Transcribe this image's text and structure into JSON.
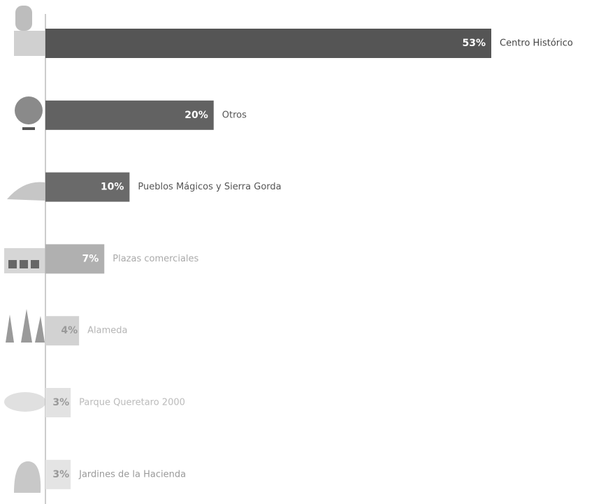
{
  "chart_data": {
    "type": "bar",
    "orientation": "horizontal",
    "categories": [
      "Centro Histórico",
      "Otros",
      "Pueblos Mágicos y Sierra Gorda",
      "Plazas comerciales",
      "Alameda",
      "Parque Queretaro 2000",
      "Jardines de la Hacienda"
    ],
    "values": [
      53,
      20,
      10,
      7,
      4,
      3,
      3
    ],
    "value_labels": [
      "53%",
      "20%",
      "10%",
      "7%",
      "4%",
      "3%",
      "3%"
    ],
    "colors": [
      "#555555",
      "#626262",
      "#6a6a6a",
      "#b0b0b0",
      "#d2d2d2",
      "#e2e2e2",
      "#e4e4e4"
    ],
    "text_colors": [
      "#444444",
      "#555555",
      "#555555",
      "#aaaaaa",
      "#b5b5b5",
      "#bbbbbb",
      "#9a9a9a"
    ]
  }
}
